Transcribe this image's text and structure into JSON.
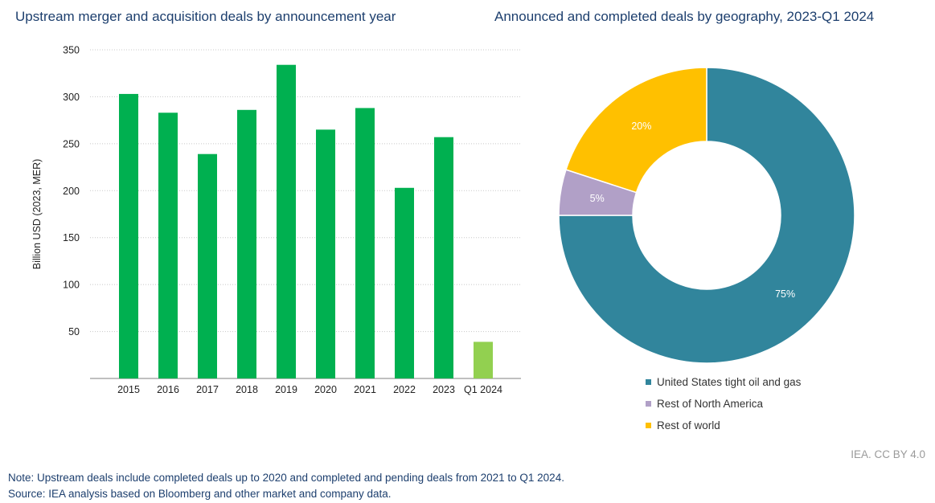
{
  "titles": {
    "left": "Upstream merger and acquisition deals by announcement year",
    "right": "Announced and completed deals by geography, 2023-Q1 2024"
  },
  "colors": {
    "bar": "#00b050",
    "bar_partial": "#92d050",
    "us": "#31859c",
    "rest_na": "#b1a0c7",
    "rest_world": "#ffc000"
  },
  "chart_data": [
    {
      "type": "bar",
      "title": "Upstream merger and acquisition deals by announcement year",
      "categories": [
        "2015",
        "2016",
        "2017",
        "2018",
        "2019",
        "2020",
        "2021",
        "2022",
        "2023",
        "Q1 2024"
      ],
      "values": [
        303,
        283,
        239,
        286,
        334,
        265,
        288,
        203,
        257,
        39
      ],
      "ylabel": "Billion USD (2023, MER)",
      "xlabel": "",
      "ylim": [
        0,
        350
      ],
      "yticks": [
        50,
        100,
        150,
        200,
        250,
        300,
        350
      ],
      "grid": true
    },
    {
      "type": "pie",
      "title": "Announced and completed deals by geography, 2023-Q1 2024",
      "labels": [
        "United States tight oil and gas",
        "Rest of North America",
        "Rest of world"
      ],
      "values": [
        75,
        5,
        20
      ],
      "data_labels": [
        "75%",
        "5%",
        "20%"
      ],
      "legend": "bottom"
    }
  ],
  "footer": {
    "credit": "IEA. CC BY 4.0",
    "note": "Note: Upstream deals include completed deals up to 2020 and completed and pending deals from 2021 to Q1 2024.",
    "source": "Source: IEA analysis based on Bloomberg and other market and company data."
  }
}
